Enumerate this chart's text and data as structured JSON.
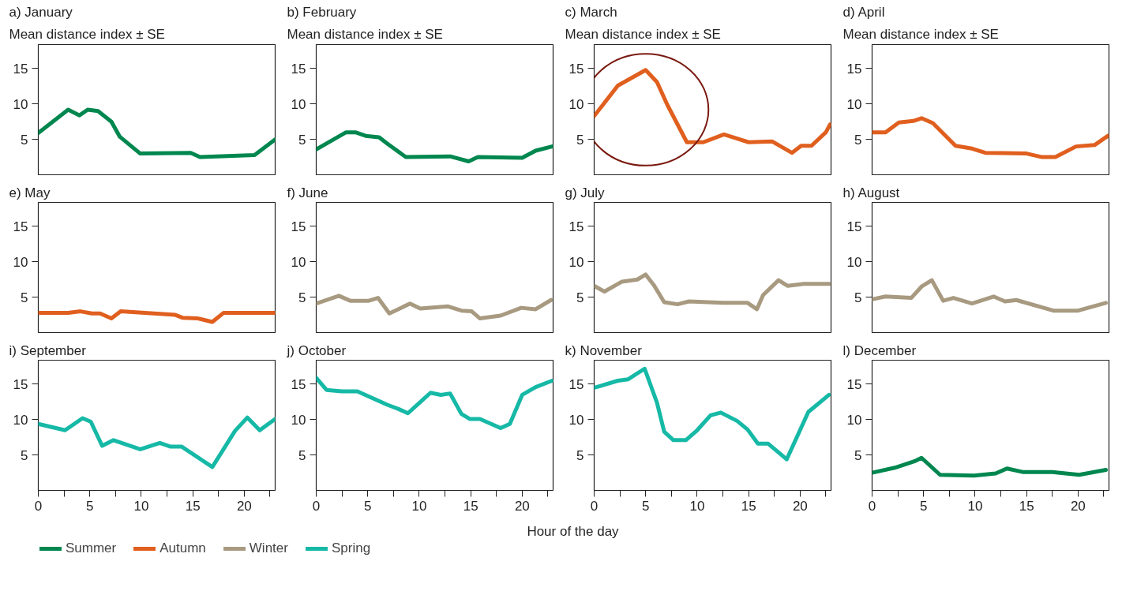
{
  "chart_data": [
    {
      "type": "line",
      "title": "a) January",
      "ylabel": "Mean distance index ± SE",
      "xlim": [
        0,
        23
      ],
      "ylim": [
        0,
        18.4
      ],
      "yticks": [
        5,
        10,
        15
      ],
      "tick_labels": "y",
      "grid": false,
      "legend": "bottom",
      "series": [
        {
          "name": "Summer",
          "color": "#00874f",
          "x": [
            0,
            2.9,
            4,
            4.8,
            5.8,
            7.1,
            7.9,
            9.9,
            14.8,
            15.7,
            21,
            23
          ],
          "values": [
            5.9,
            9.2,
            8.4,
            9.2,
            9.0,
            7.5,
            5.4,
            3.0,
            3.1,
            2.5,
            2.8,
            5.0
          ]
        }
      ]
    },
    {
      "type": "line",
      "title": "b) February",
      "ylabel": "Mean distance index ± SE",
      "xlim": [
        0,
        23
      ],
      "ylim": [
        0,
        18.4
      ],
      "yticks": [
        5,
        10,
        15
      ],
      "tick_labels": "y",
      "grid": false,
      "legend": "bottom",
      "series": [
        {
          "name": "Summer",
          "color": "#00874f",
          "x": [
            0,
            2.9,
            3.8,
            4.8,
            6.1,
            7,
            8.7,
            13,
            14.8,
            15.7,
            20,
            21.3,
            22.9
          ],
          "values": [
            3.6,
            6.0,
            6.0,
            5.5,
            5.3,
            4.3,
            2.5,
            2.6,
            1.9,
            2.5,
            2.4,
            3.4,
            4.0
          ]
        }
      ]
    },
    {
      "type": "line",
      "title": "c) March",
      "ylabel": "Mean distance index ± SE",
      "xlim": [
        0,
        23
      ],
      "ylim": [
        0,
        18.4
      ],
      "yticks": [
        5,
        10,
        15
      ],
      "tick_labels": "y",
      "grid": false,
      "legend": "bottom",
      "series": [
        {
          "name": "Autumn",
          "color": "#e05f1e",
          "x": [
            0,
            2.3,
            5,
            6.1,
            7.1,
            9.0,
            10.6,
            12.6,
            13.7,
            15,
            17.3,
            19.2,
            20.1,
            21.1,
            22.5,
            22.9
          ],
          "values": [
            8.3,
            12.6,
            14.8,
            13.1,
            9.9,
            4.6,
            4.6,
            5.7,
            5.2,
            4.6,
            4.7,
            3.1,
            4.1,
            4.1,
            6.0,
            7.1
          ]
        }
      ]
    },
    {
      "type": "line",
      "title": "d) April",
      "ylabel": "Mean distance index ± SE",
      "xlim": [
        0,
        23
      ],
      "ylim": [
        0,
        18.4
      ],
      "yticks": [
        5,
        10,
        15
      ],
      "tick_labels": "y",
      "grid": false,
      "legend": "bottom",
      "series": [
        {
          "name": "Autumn",
          "color": "#e05f1e",
          "x": [
            0,
            1.3,
            2.6,
            4,
            4.8,
            5.9,
            8.1,
            9.7,
            11,
            15,
            16.5,
            17.8,
            19.8,
            21.6,
            22.9
          ],
          "values": [
            6.0,
            6.0,
            7.4,
            7.6,
            8.0,
            7.3,
            4.1,
            3.7,
            3.1,
            3.0,
            2.5,
            2.5,
            4.0,
            4.2,
            5.5
          ]
        }
      ]
    },
    {
      "type": "line",
      "title": "e) May",
      "xlim": [
        0,
        23
      ],
      "ylim": [
        0,
        18.4
      ],
      "yticks": [
        5,
        10,
        15
      ],
      "tick_labels": "y",
      "grid": false,
      "legend": "bottom",
      "series": [
        {
          "name": "Autumn",
          "color": "#e05f1e",
          "x": [
            0,
            2.9,
            4.1,
            5.2,
            6,
            7.1,
            8,
            13.3,
            14,
            15.5,
            16.9,
            18,
            23
          ],
          "values": [
            2.8,
            2.8,
            3.0,
            2.7,
            2.7,
            2.0,
            3.0,
            2.5,
            2.1,
            2.0,
            1.5,
            2.8,
            2.8
          ]
        }
      ]
    },
    {
      "type": "line",
      "title": "f) June",
      "xlim": [
        0,
        23
      ],
      "ylim": [
        0,
        18.4
      ],
      "yticks": [
        5,
        10,
        15
      ],
      "tick_labels": "y",
      "grid": false,
      "legend": "bottom",
      "series": [
        {
          "name": "Winter",
          "color": "#a89a80",
          "x": [
            0,
            2.2,
            3.3,
            5.1,
            6,
            7.1,
            9.1,
            10.1,
            12.8,
            14.1,
            15.1,
            15.9,
            17.9,
            19.9,
            21.3,
            22.8
          ],
          "values": [
            4.1,
            5.2,
            4.5,
            4.5,
            4.9,
            2.7,
            4.1,
            3.4,
            3.7,
            3.1,
            3.0,
            2.0,
            2.4,
            3.5,
            3.3,
            4.6
          ]
        }
      ]
    },
    {
      "type": "line",
      "title": "g) July",
      "xlim": [
        0,
        23
      ],
      "ylim": [
        0,
        18.4
      ],
      "yticks": [
        5,
        10,
        15
      ],
      "tick_labels": "y",
      "grid": false,
      "legend": "bottom",
      "series": [
        {
          "name": "Winter",
          "color": "#a89a80",
          "x": [
            0,
            1,
            2.7,
            4.2,
            5,
            5.8,
            6.8,
            8.1,
            9.2,
            12.5,
            14.9,
            15.8,
            16.4,
            17.9,
            18.8,
            20.4,
            22.8
          ],
          "values": [
            6.6,
            5.8,
            7.2,
            7.5,
            8.2,
            6.7,
            4.3,
            4.0,
            4.4,
            4.2,
            4.2,
            3.3,
            5.3,
            7.4,
            6.6,
            6.9,
            6.9
          ]
        }
      ]
    },
    {
      "type": "line",
      "title": "h) August",
      "xlim": [
        0,
        23
      ],
      "ylim": [
        0,
        18.4
      ],
      "yticks": [
        5,
        10,
        15
      ],
      "tick_labels": "y",
      "grid": false,
      "legend": "bottom",
      "series": [
        {
          "name": "Winter",
          "color": "#a89a80",
          "x": [
            0,
            1.3,
            3.8,
            4.8,
            5.8,
            6.9,
            7.9,
            9.7,
            11.8,
            12.9,
            14,
            17.6,
            20,
            22.7
          ],
          "values": [
            4.7,
            5.1,
            4.9,
            6.5,
            7.4,
            4.5,
            4.9,
            4.1,
            5.1,
            4.4,
            4.6,
            3.1,
            3.1,
            4.2
          ]
        }
      ]
    },
    {
      "type": "line",
      "title": "i) September",
      "xlim": [
        0,
        23
      ],
      "ylim": [
        0,
        18.4
      ],
      "xticks": [
        0,
        {
          "value": 2.5,
          "label": null
        },
        5,
        {
          "value": 7.5,
          "label": null
        },
        10,
        {
          "value": 12.5,
          "label": null
        },
        15,
        {
          "value": 17.5,
          "label": null
        },
        20,
        {
          "value": 22.5,
          "label": null
        }
      ],
      "yticks": [
        5,
        10,
        15
      ],
      "grid": false,
      "legend": "bottom",
      "series": [
        {
          "name": "Spring",
          "color": "#16b9a6",
          "x": [
            0,
            2.6,
            4.3,
            5.1,
            6.2,
            7.3,
            9.9,
            11.8,
            12.8,
            13.9,
            16.9,
            19.1,
            20.3,
            21.5,
            23
          ],
          "values": [
            9.4,
            8.5,
            10.2,
            9.7,
            6.3,
            7.1,
            5.8,
            6.7,
            6.2,
            6.2,
            3.3,
            8.4,
            10.3,
            8.5,
            10.1
          ]
        }
      ]
    },
    {
      "type": "line",
      "title": "j) October",
      "xlabel": "Hour of the day",
      "xlim": [
        0,
        23
      ],
      "ylim": [
        0,
        18.4
      ],
      "xticks": [
        0,
        {
          "value": 2.5,
          "label": null
        },
        5,
        {
          "value": 7.5,
          "label": null
        },
        10,
        {
          "value": 12.5,
          "label": null
        },
        15,
        {
          "value": 17.5,
          "label": null
        },
        20,
        {
          "value": 22.5,
          "label": null
        }
      ],
      "yticks": [
        5,
        10,
        15
      ],
      "grid": false,
      "legend": "bottom",
      "series": [
        {
          "name": "Spring",
          "color": "#16b9a6",
          "x": [
            0,
            1,
            2.5,
            4,
            6.9,
            8,
            8.9,
            11.1,
            12.1,
            13,
            14.1,
            14.9,
            15.9,
            17.9,
            18.8,
            20,
            21.3,
            22.9
          ],
          "values": [
            15.9,
            14.2,
            14.0,
            14.0,
            12.1,
            11.5,
            10.9,
            13.8,
            13.5,
            13.7,
            10.8,
            10.1,
            10.1,
            8.8,
            9.4,
            13.5,
            14.6,
            15.5
          ]
        }
      ]
    },
    {
      "type": "line",
      "title": "k) November",
      "xlim": [
        0,
        23
      ],
      "ylim": [
        0,
        18.4
      ],
      "xticks": [
        0,
        {
          "value": 2.5,
          "label": null
        },
        5,
        {
          "value": 7.5,
          "label": null
        },
        10,
        {
          "value": 12.5,
          "label": null
        },
        15,
        {
          "value": 17.5,
          "label": null
        },
        20,
        {
          "value": 22.5,
          "label": null
        }
      ],
      "yticks": [
        5,
        10,
        15
      ],
      "grid": false,
      "legend": "bottom",
      "series": [
        {
          "name": "Spring",
          "color": "#16b9a6",
          "x": [
            0,
            2.3,
            3.3,
            4.9,
            6.1,
            6.8,
            7.7,
            8.9,
            10,
            11.3,
            12.3,
            13.9,
            14.9,
            15.9,
            16.9,
            18.7,
            20.8,
            22.8
          ],
          "values": [
            14.5,
            15.5,
            15.7,
            17.2,
            12.4,
            8.3,
            7.1,
            7.1,
            8.5,
            10.6,
            11.0,
            9.8,
            8.6,
            6.6,
            6.6,
            4.4,
            11.1,
            13.5
          ]
        }
      ]
    },
    {
      "type": "line",
      "title": "l) December",
      "xlim": [
        0,
        23
      ],
      "ylim": [
        0,
        18.4
      ],
      "xticks": [
        0,
        {
          "value": 2.5,
          "label": null
        },
        5,
        {
          "value": 7.5,
          "label": null
        },
        10,
        {
          "value": 12.5,
          "label": null
        },
        15,
        {
          "value": 17.5,
          "label": null
        },
        20,
        {
          "value": 22.5,
          "label": null
        }
      ],
      "yticks": [
        5,
        10,
        15
      ],
      "grid": false,
      "legend": "bottom",
      "series": [
        {
          "name": "Summer",
          "color": "#00874f",
          "x": [
            0,
            2.2,
            4.1,
            4.8,
            6.6,
            9.9,
            12.0,
            13.1,
            14.6,
            17.5,
            20.1,
            22.7
          ],
          "values": [
            2.5,
            3.2,
            4.1,
            4.6,
            2.2,
            2.1,
            2.4,
            3.1,
            2.6,
            2.6,
            2.2,
            2.9
          ]
        }
      ]
    }
  ]
}
